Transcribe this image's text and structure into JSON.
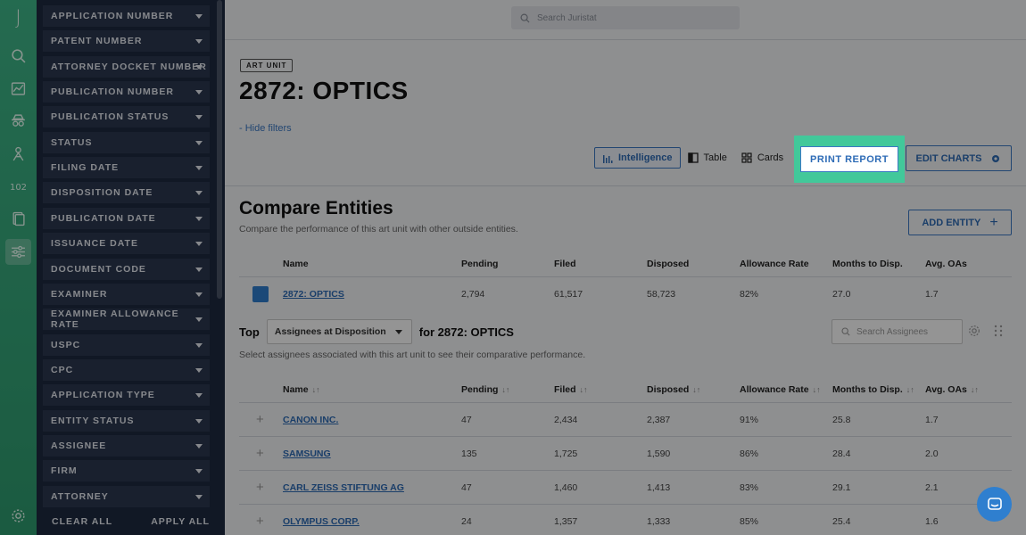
{
  "rail": {
    "logo": "J",
    "badge": "102"
  },
  "filters": {
    "items": [
      "APPLICATION NUMBER",
      "PATENT NUMBER",
      "ATTORNEY DOCKET NUMBER",
      "PUBLICATION NUMBER",
      "PUBLICATION STATUS",
      "STATUS",
      "FILING DATE",
      "DISPOSITION DATE",
      "PUBLICATION DATE",
      "ISSUANCE DATE",
      "DOCUMENT CODE",
      "EXAMINER",
      "EXAMINER ALLOWANCE RATE",
      "USPC",
      "CPC",
      "APPLICATION TYPE",
      "ENTITY STATUS",
      "ASSIGNEE",
      "FIRM",
      "ATTORNEY"
    ],
    "clear_all": "CLEAR ALL",
    "apply_all": "APPLY ALL"
  },
  "header": {
    "search_placeholder": "Search Juristat"
  },
  "page": {
    "chip": "ART UNIT",
    "title": "2872: OPTICS",
    "hide_filters": "- Hide filters"
  },
  "views": {
    "intelligence": "Intelligence",
    "table": "Table",
    "cards": "Cards"
  },
  "actions": {
    "print_report": "PRINT REPORT",
    "edit_charts": "EDIT CHARTS",
    "add_entity": "ADD ENTITY"
  },
  "compare": {
    "title": "Compare Entities",
    "subtitle": "Compare the performance of this art unit with other outside entities.",
    "columns": [
      "Name",
      "Pending",
      "Filed",
      "Disposed",
      "Allowance Rate",
      "Months to Disp.",
      "Avg. OAs"
    ],
    "rows": [
      {
        "name": "2872: OPTICS",
        "pending": "2,794",
        "filed": "61,517",
        "disposed": "58,723",
        "allowance": "82%",
        "months": "27.0",
        "oas": "1.7"
      }
    ]
  },
  "top": {
    "label": "Top",
    "select_value": "Assignees at Disposition",
    "for_label": "for 2872: OPTICS",
    "subtitle": "Select assignees associated with this art unit to see their comparative performance.",
    "search_placeholder": "Search Assignees",
    "columns": [
      "Name",
      "Pending",
      "Filed",
      "Disposed",
      "Allowance Rate",
      "Months to Disp.",
      "Avg. OAs"
    ],
    "rows": [
      {
        "name": "CANON INC.",
        "pending": "47",
        "filed": "2,434",
        "disposed": "2,387",
        "allowance": "91%",
        "months": "25.8",
        "oas": "1.7"
      },
      {
        "name": "SAMSUNG",
        "pending": "135",
        "filed": "1,725",
        "disposed": "1,590",
        "allowance": "86%",
        "months": "28.4",
        "oas": "2.0"
      },
      {
        "name": "CARL ZEISS STIFTUNG AG",
        "pending": "47",
        "filed": "1,460",
        "disposed": "1,413",
        "allowance": "83%",
        "months": "29.1",
        "oas": "2.1"
      },
      {
        "name": "OLYMPUS CORP.",
        "pending": "24",
        "filed": "1,357",
        "disposed": "1,333",
        "allowance": "85%",
        "months": "25.4",
        "oas": "1.6"
      }
    ]
  },
  "colors": {
    "accent": "#2d6bb6",
    "highlight": "#42c89a",
    "rail": "#3fb88a",
    "panel": "#1e2a40"
  }
}
